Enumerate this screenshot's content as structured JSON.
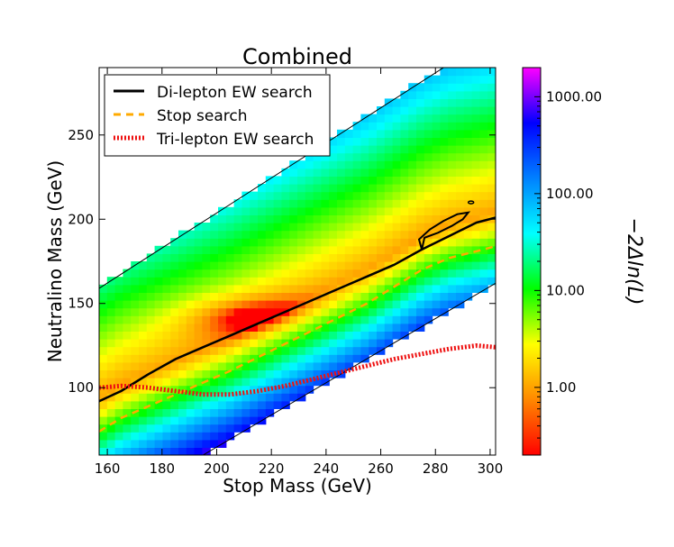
{
  "chart_data": {
    "type": "heatmap",
    "title": "Combined",
    "xlabel": "Stop Mass (GeV)",
    "ylabel": "Neutralino Mass (GeV)",
    "colorbar_label": "−2Δln(L)",
    "xlim": [
      157,
      302
    ],
    "ylim": [
      60,
      290
    ],
    "x_ticks": [
      "160",
      "180",
      "200",
      "220",
      "240",
      "260",
      "280",
      "300"
    ],
    "y_ticks": [
      "100",
      "150",
      "200",
      "250"
    ],
    "colorbar": {
      "scale": "log",
      "range": [
        0.2,
        2000
      ],
      "ticks": [
        "1.00",
        "10.00",
        "100.00",
        "1000.00"
      ],
      "colors": [
        "#ff0000",
        "#ff8800",
        "#ffff00",
        "#00ff00",
        "#00ffff",
        "#0080ff",
        "#0000ff",
        "#ff00ff"
      ]
    },
    "allowed_region": {
      "upper_edge": [
        [
          157,
          159
        ],
        [
          283,
          290
        ]
      ],
      "lower_edge": [
        [
          195,
          60
        ],
        [
          302,
          162
        ]
      ]
    },
    "legend": {
      "position": "top-left",
      "entries": [
        {
          "label": "Di-lepton EW search",
          "color": "#000000",
          "style": "solid"
        },
        {
          "label": "Stop search",
          "color": "#ffaa00",
          "style": "dashed"
        },
        {
          "label": "Tri-lepton EW search",
          "color": "#ee1111",
          "style": "dotted"
        }
      ]
    },
    "series": [
      {
        "name": "Di-lepton EW search",
        "color": "#000000",
        "points": [
          [
            157,
            92
          ],
          [
            165,
            98
          ],
          [
            175,
            108
          ],
          [
            185,
            117
          ],
          [
            195,
            124
          ],
          [
            205,
            131
          ],
          [
            215,
            138
          ],
          [
            225,
            145
          ],
          [
            235,
            152
          ],
          [
            245,
            159
          ],
          [
            255,
            166
          ],
          [
            265,
            173
          ],
          [
            275,
            182
          ],
          [
            285,
            190
          ],
          [
            295,
            198
          ],
          [
            302,
            201
          ]
        ]
      },
      {
        "name": "Stop search",
        "color": "#ffaa00",
        "points": [
          [
            157,
            74
          ],
          [
            165,
            82
          ],
          [
            175,
            89
          ],
          [
            185,
            96
          ],
          [
            195,
            103
          ],
          [
            205,
            110
          ],
          [
            215,
            118
          ],
          [
            225,
            126
          ],
          [
            235,
            134
          ],
          [
            245,
            142
          ],
          [
            255,
            150
          ],
          [
            265,
            160
          ],
          [
            275,
            170
          ],
          [
            285,
            177
          ],
          [
            295,
            181
          ],
          [
            302,
            184
          ]
        ]
      },
      {
        "name": "Tri-lepton EW search",
        "color": "#ee1111",
        "points": [
          [
            157,
            100
          ],
          [
            165,
            101
          ],
          [
            175,
            100
          ],
          [
            185,
            98
          ],
          [
            195,
            96
          ],
          [
            205,
            96
          ],
          [
            215,
            98
          ],
          [
            225,
            101
          ],
          [
            235,
            105
          ],
          [
            245,
            109
          ],
          [
            255,
            113
          ],
          [
            265,
            117
          ],
          [
            275,
            120
          ],
          [
            285,
            123
          ],
          [
            295,
            125
          ],
          [
            302,
            124
          ]
        ]
      }
    ],
    "extra_contour": {
      "color": "#000000",
      "points": [
        [
          275,
          182
        ],
        [
          276,
          189
        ],
        [
          281,
          192
        ],
        [
          286,
          196
        ],
        [
          290,
          200
        ],
        [
          292,
          204
        ],
        [
          288,
          203
        ],
        [
          283,
          199
        ],
        [
          278,
          194
        ],
        [
          274,
          188
        ],
        [
          275,
          182
        ]
      ]
    },
    "extra_dot": [
      [
        293,
        210
      ]
    ],
    "minimum": {
      "x": 205,
      "y": 145
    }
  }
}
